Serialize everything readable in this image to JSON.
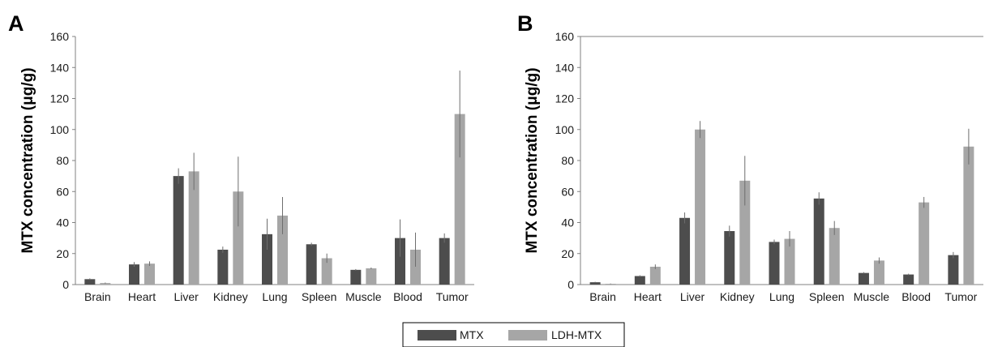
{
  "colors": {
    "mtx": "#4d4d4d",
    "ldh_mtx": "#a6a6a6",
    "axis": "#808080",
    "errorbar": "#6e6e6e"
  },
  "legend": {
    "items": [
      {
        "label": "MTX",
        "color": "#4d4d4d"
      },
      {
        "label": "LDH-MTX",
        "color": "#a6a6a6"
      }
    ],
    "placement": "bottom-center"
  },
  "chart_data": [
    {
      "panel": "A",
      "type": "bar",
      "ylabel": "MTX concentration (μg/g)",
      "ylim": [
        0,
        160
      ],
      "yticks": [
        0,
        20,
        40,
        60,
        80,
        100,
        120,
        140,
        160
      ],
      "categories": [
        "Brain",
        "Heart",
        "Liver",
        "Kidney",
        "Lung",
        "Spleen",
        "Muscle",
        "Blood",
        "Tumor"
      ],
      "series": [
        {
          "name": "MTX",
          "values": [
            3.5,
            13,
            70,
            22.5,
            32.5,
            26,
            9.5,
            30,
            30
          ],
          "errors": [
            0.5,
            1.5,
            5,
            2,
            10,
            1,
            0.5,
            12,
            3
          ]
        },
        {
          "name": "LDH-MTX",
          "values": [
            1,
            13.5,
            73,
            60,
            44.5,
            17,
            10.5,
            22.5,
            110
          ],
          "errors": [
            0.3,
            1.5,
            12,
            22.5,
            12,
            3,
            0.5,
            11,
            28
          ]
        }
      ],
      "grid": false
    },
    {
      "panel": "B",
      "type": "bar",
      "ylabel": "MTX concentration (μg/g)",
      "ylim": [
        0,
        160
      ],
      "yticks": [
        0,
        20,
        40,
        60,
        80,
        100,
        120,
        140,
        160
      ],
      "categories": [
        "Brain",
        "Heart",
        "Liver",
        "Kidney",
        "Lung",
        "Spleen",
        "Muscle",
        "Blood",
        "Tumor"
      ],
      "series": [
        {
          "name": "MTX",
          "values": [
            1.5,
            5.5,
            43,
            34.5,
            27.5,
            55.5,
            7.5,
            6.5,
            19
          ],
          "errors": [
            0.3,
            0.5,
            3.5,
            3.5,
            1.5,
            4,
            0.5,
            0.5,
            2
          ]
        },
        {
          "name": "LDH-MTX",
          "values": [
            0.5,
            11.5,
            100,
            67,
            29.5,
            36.5,
            15.5,
            53,
            89
          ],
          "errors": [
            0.2,
            1.5,
            5.5,
            16,
            5,
            4.5,
            2,
            3.5,
            11.5
          ]
        }
      ],
      "grid": false
    }
  ]
}
